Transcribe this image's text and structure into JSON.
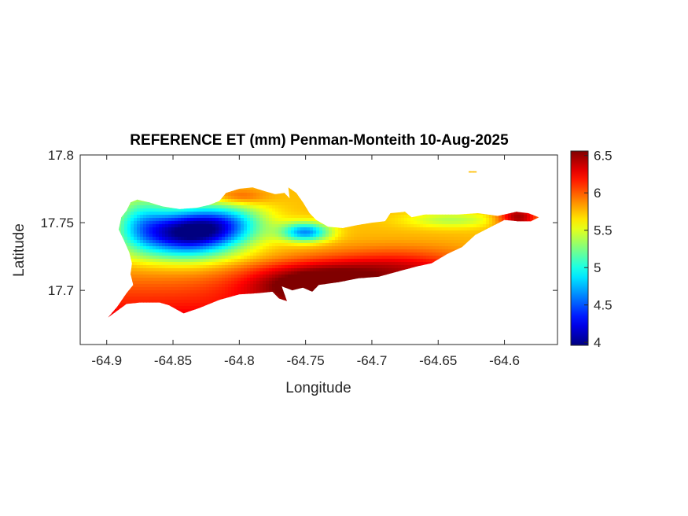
{
  "chart_data": {
    "type": "heatmap",
    "title": "REFERENCE ET (mm) Penman-Monteith 10-Aug-2025",
    "xlabel": "Longitude",
    "ylabel": "Latitude",
    "xlim": [
      -64.92,
      -64.56
    ],
    "ylim": [
      17.66,
      17.8
    ],
    "xticks": [
      -64.9,
      -64.85,
      -64.8,
      -64.75,
      -64.7,
      -64.65,
      -64.6
    ],
    "xtick_labels": [
      "-64.9",
      "-64.85",
      "-64.8",
      "-64.75",
      "-64.7",
      "-64.65",
      "-64.6"
    ],
    "yticks": [
      17.7,
      17.75,
      17.8
    ],
    "ytick_labels": [
      "17.7",
      "17.75",
      "17.8"
    ],
    "colorbar": {
      "colormap": "jet",
      "clim": [
        3.96,
        6.56
      ],
      "ticks": [
        4,
        4.5,
        5,
        5.5,
        6,
        6.5
      ],
      "tick_labels": [
        "4",
        "4.5",
        "5",
        "5.5",
        "6",
        "6.5"
      ]
    },
    "grid": false,
    "regions": [
      {
        "name": "",
        "points": [
          [
            -64.899,
            17.68
          ],
          [
            -64.885,
            17.69
          ],
          [
            -64.875,
            17.691
          ],
          [
            -64.86,
            17.691
          ],
          [
            -64.853,
            17.689
          ],
          [
            -64.842,
            17.683
          ],
          [
            -64.83,
            17.687
          ],
          [
            -64.815,
            17.693
          ],
          [
            -64.8,
            17.697
          ],
          [
            -64.785,
            17.698
          ],
          [
            -64.775,
            17.699
          ],
          [
            -64.77,
            17.694
          ],
          [
            -64.764,
            17.692
          ],
          [
            -64.768,
            17.703
          ],
          [
            -64.76,
            17.7
          ],
          [
            -64.752,
            17.702
          ],
          [
            -64.745,
            17.699
          ],
          [
            -64.74,
            17.704
          ],
          [
            -64.725,
            17.706
          ],
          [
            -64.71,
            17.709
          ],
          [
            -64.695,
            17.71
          ],
          [
            -64.68,
            17.714
          ],
          [
            -64.665,
            17.718
          ],
          [
            -64.655,
            17.72
          ],
          [
            -64.643,
            17.727
          ],
          [
            -64.632,
            17.732
          ],
          [
            -64.622,
            17.741
          ],
          [
            -64.612,
            17.746
          ],
          [
            -64.6,
            17.752
          ],
          [
            -64.59,
            17.751
          ],
          [
            -64.58,
            17.751
          ],
          [
            -64.574,
            17.754
          ],
          [
            -64.582,
            17.757
          ],
          [
            -64.591,
            17.758
          ],
          [
            -64.605,
            17.755
          ],
          [
            -64.62,
            17.757
          ],
          [
            -64.635,
            17.756
          ],
          [
            -64.65,
            17.756
          ],
          [
            -64.66,
            17.756
          ],
          [
            -64.67,
            17.754
          ],
          [
            -64.675,
            17.758
          ],
          [
            -64.686,
            17.757
          ],
          [
            -64.69,
            17.751
          ],
          [
            -64.7,
            17.75
          ],
          [
            -64.712,
            17.748
          ],
          [
            -64.722,
            17.746
          ],
          [
            -64.733,
            17.747
          ],
          [
            -64.742,
            17.752
          ],
          [
            -64.747,
            17.757
          ],
          [
            -64.752,
            17.765
          ],
          [
            -64.757,
            17.772
          ],
          [
            -64.763,
            17.776
          ],
          [
            -64.762,
            17.768
          ],
          [
            -64.766,
            17.772
          ],
          [
            -64.773,
            17.771
          ],
          [
            -64.78,
            17.773
          ],
          [
            -64.79,
            17.776
          ],
          [
            -64.8,
            17.775
          ],
          [
            -64.81,
            17.772
          ],
          [
            -64.815,
            17.766
          ],
          [
            -64.823,
            17.763
          ],
          [
            -64.832,
            17.761
          ],
          [
            -64.845,
            17.76
          ],
          [
            -64.858,
            17.762
          ],
          [
            -64.868,
            17.765
          ],
          [
            -64.877,
            17.767
          ],
          [
            -64.882,
            17.765
          ],
          [
            -64.885,
            17.759
          ],
          [
            -64.889,
            17.754
          ],
          [
            -64.891,
            17.745
          ],
          [
            -64.887,
            17.737
          ],
          [
            -64.883,
            17.728
          ],
          [
            -64.881,
            17.72
          ],
          [
            -64.882,
            17.712
          ],
          [
            -64.88,
            17.704
          ],
          [
            -64.885,
            17.698
          ],
          [
            -64.892,
            17.688
          ]
        ]
      },
      {
        "name": "",
        "points": [
          [
            -64.627,
            17.788
          ],
          [
            -64.621,
            17.788
          ],
          [
            -64.621,
            17.787
          ],
          [
            -64.627,
            17.787
          ]
        ]
      }
    ],
    "value_field": {
      "base": 5.75,
      "features": [
        {
          "lon": -64.84,
          "lat": 17.742,
          "amp": -1.7,
          "sx": 0.038,
          "sy": 0.017
        },
        {
          "lon": -64.81,
          "lat": 17.75,
          "amp": -0.7,
          "sx": 0.03,
          "sy": 0.014
        },
        {
          "lon": -64.75,
          "lat": 17.743,
          "amp": -1.1,
          "sx": 0.018,
          "sy": 0.007
        },
        {
          "lon": -64.875,
          "lat": 17.752,
          "amp": -0.5,
          "sx": 0.02,
          "sy": 0.022
        },
        {
          "lon": -64.8,
          "lat": 17.769,
          "amp": 0.3,
          "sx": 0.02,
          "sy": 0.006
        },
        {
          "lon": -64.745,
          "lat": 17.705,
          "amp": 0.75,
          "sx": 0.05,
          "sy": 0.015
        },
        {
          "lon": -64.68,
          "lat": 17.717,
          "amp": 0.5,
          "sx": 0.06,
          "sy": 0.014
        },
        {
          "lon": -64.59,
          "lat": 17.754,
          "amp": 0.75,
          "sx": 0.015,
          "sy": 0.01
        },
        {
          "lon": -64.64,
          "lat": 17.752,
          "amp": -0.35,
          "sx": 0.035,
          "sy": 0.006
        }
      ]
    }
  }
}
